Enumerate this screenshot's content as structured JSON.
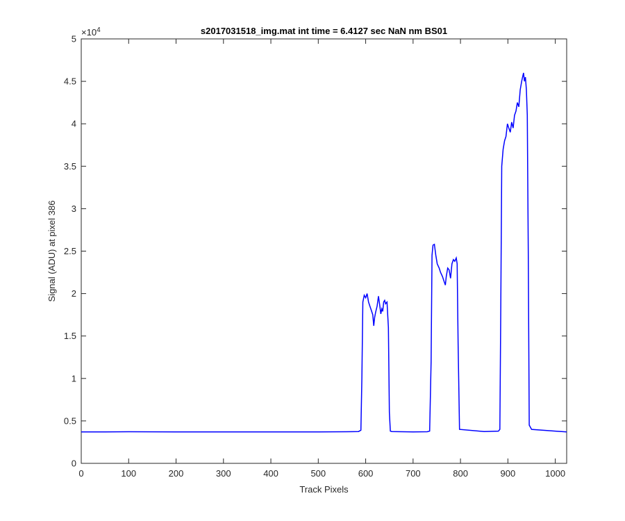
{
  "chart_data": {
    "type": "line",
    "title": "s2017031518_img.mat int time = 6.4127 sec  NaN nm BS01",
    "xlabel": "Track Pixels",
    "ylabel": "Signal (ADU) at pixel 386",
    "exponent_label": "×10",
    "exponent_power": "4",
    "xlim": [
      0,
      1024
    ],
    "ylim": [
      0,
      5
    ],
    "y_scale_factor": 10000,
    "xticks": [
      0,
      100,
      200,
      300,
      400,
      500,
      600,
      700,
      800,
      900,
      1000
    ],
    "xtick_labels": [
      "0",
      "100",
      "200",
      "300",
      "400",
      "500",
      "600",
      "700",
      "800",
      "900",
      "1000"
    ],
    "yticks": [
      0,
      0.5,
      1,
      1.5,
      2,
      2.5,
      3,
      3.5,
      4,
      4.5,
      5
    ],
    "ytick_labels": [
      "0",
      "0.5",
      "1",
      "1.5",
      "2",
      "2.5",
      "3",
      "3.5",
      "4",
      "4.5",
      "5"
    ],
    "grid": false,
    "line_color": "#0000ff",
    "series": [
      {
        "name": "",
        "x": [
          0,
          50,
          100,
          200,
          300,
          400,
          500,
          560,
          585,
          590,
          592,
          594,
          597,
          600,
          603,
          606,
          609,
          612,
          615,
          617,
          619,
          621,
          624,
          627,
          630,
          632,
          634,
          636,
          638,
          640,
          642,
          645,
          648,
          650,
          652,
          655,
          700,
          730,
          735,
          738,
          740,
          742,
          745,
          748,
          751,
          755,
          758,
          762,
          765,
          768,
          770,
          773,
          776,
          779,
          782,
          785,
          788,
          791,
          793,
          795,
          798,
          850,
          880,
          883,
          885,
          887,
          890,
          893,
          896,
          899,
          902,
          905,
          908,
          911,
          914,
          917,
          920,
          923,
          926,
          929,
          931,
          933,
          935,
          937,
          939,
          941,
          943,
          945,
          950,
          1000,
          1024
        ],
        "y": [
          0.37,
          0.37,
          0.372,
          0.37,
          0.371,
          0.37,
          0.37,
          0.372,
          0.375,
          0.39,
          1.0,
          1.9,
          1.98,
          1.95,
          2.0,
          1.9,
          1.85,
          1.8,
          1.75,
          1.62,
          1.72,
          1.78,
          1.85,
          1.97,
          1.85,
          1.76,
          1.82,
          1.79,
          1.9,
          1.92,
          1.88,
          1.9,
          1.6,
          0.6,
          0.38,
          0.375,
          0.37,
          0.372,
          0.38,
          1.2,
          2.45,
          2.57,
          2.58,
          2.45,
          2.35,
          2.3,
          2.25,
          2.2,
          2.15,
          2.1,
          2.2,
          2.3,
          2.28,
          2.18,
          2.35,
          2.4,
          2.38,
          2.42,
          2.35,
          1.4,
          0.4,
          0.375,
          0.38,
          0.4,
          1.8,
          3.5,
          3.7,
          3.8,
          3.85,
          4.0,
          3.95,
          3.9,
          4.02,
          3.95,
          4.1,
          4.15,
          4.25,
          4.2,
          4.4,
          4.5,
          4.55,
          4.6,
          4.5,
          4.55,
          4.4,
          4.1,
          2.5,
          0.45,
          0.4,
          0.38,
          0.37
        ]
      }
    ]
  }
}
